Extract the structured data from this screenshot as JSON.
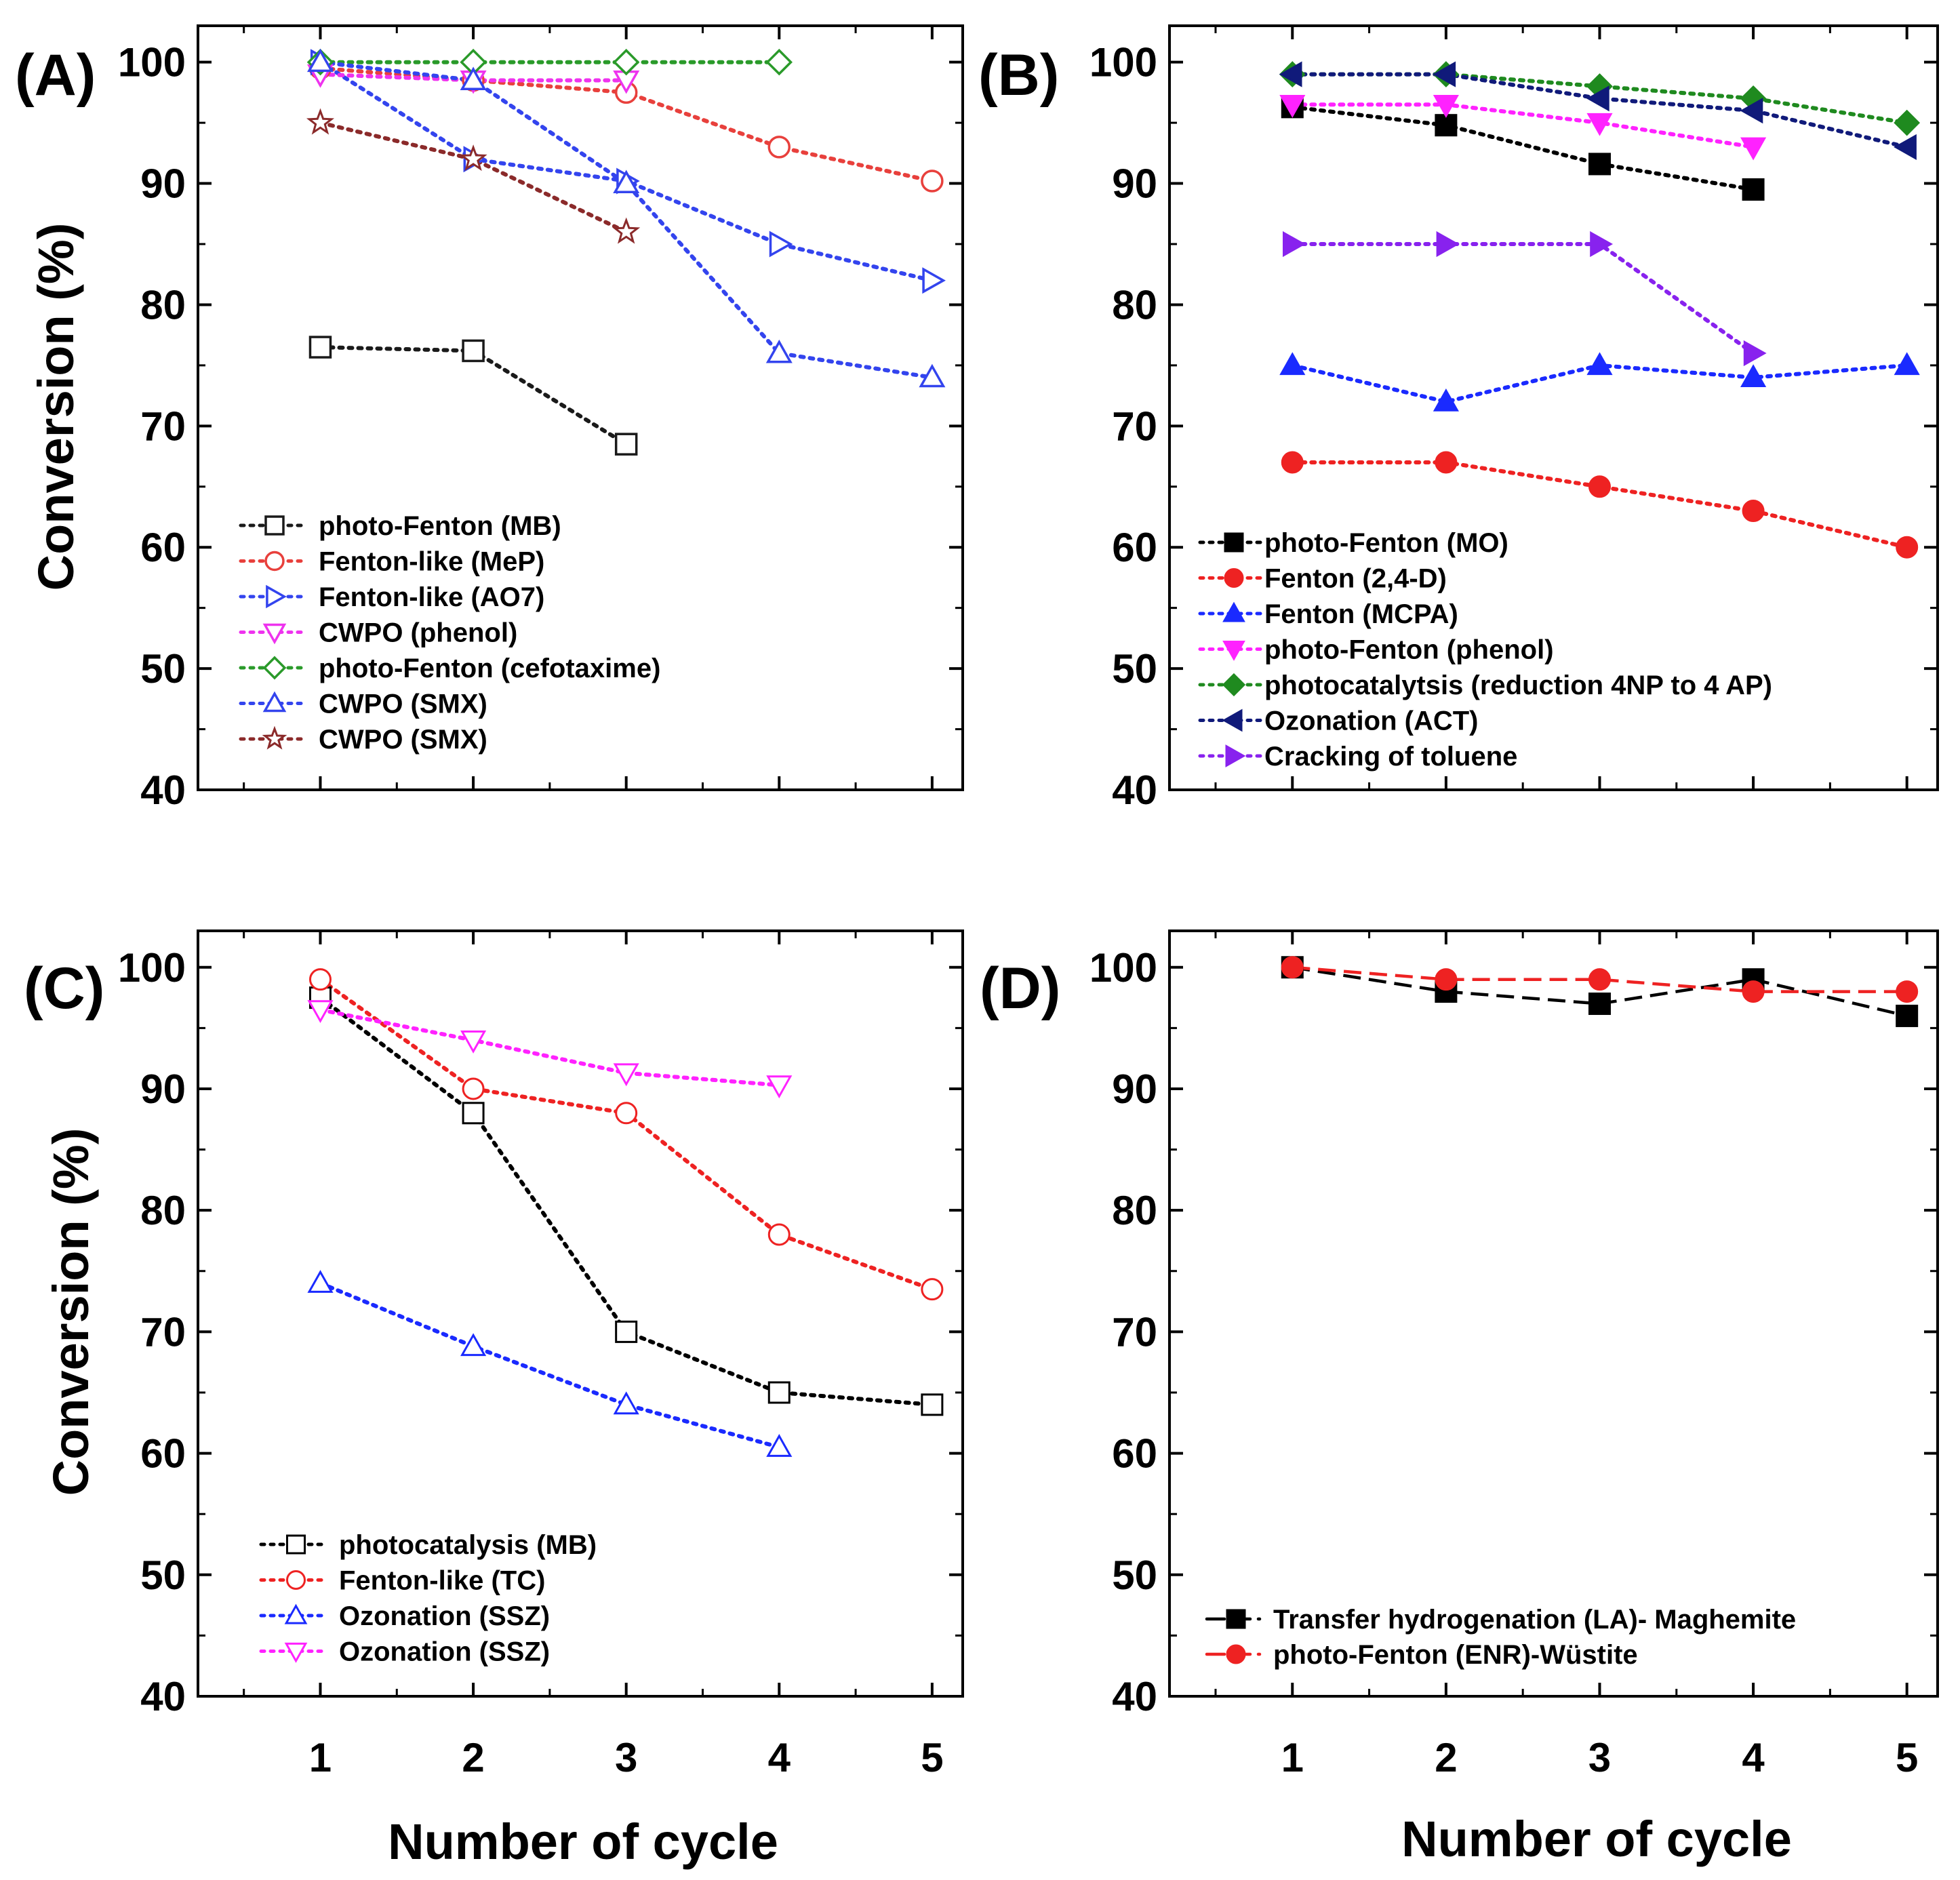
{
  "figure": {
    "shared_xlabel_left": "Number of cycle",
    "shared_xlabel_right": "Number of cycle",
    "ylabel": "Conversion (%)"
  },
  "chart_data": [
    {
      "panel": "(A)",
      "type": "line",
      "xlim": [
        0.2,
        5.2
      ],
      "ylim": [
        40,
        103
      ],
      "xticks": [
        1,
        2,
        3,
        4,
        5
      ],
      "yticks": [
        40,
        50,
        60,
        70,
        80,
        90,
        100
      ],
      "xlabel": "",
      "ylabel": "Conversion (%)",
      "legend_position": "lower-left",
      "series": [
        {
          "name": "photo-Fenton (MB)",
          "color": "#1a1a1a",
          "marker": "square",
          "fill": "open",
          "dash": "dotted",
          "x": [
            1,
            2,
            3
          ],
          "values": [
            76.5,
            76.2,
            68.5
          ]
        },
        {
          "name": "Fenton-like (MeP)",
          "color": "#e8403c",
          "marker": "circle",
          "fill": "open",
          "dash": "dotted",
          "x": [
            1,
            2,
            3,
            4,
            5
          ],
          "values": [
            99.5,
            98.5,
            97.5,
            93,
            90.2
          ]
        },
        {
          "name": "Fenton-like (AO7)",
          "color": "#3344ee",
          "marker": "triangle-right",
          "fill": "open",
          "dash": "dotted",
          "x": [
            1,
            2,
            3,
            4,
            5
          ],
          "values": [
            100,
            92,
            90.2,
            85,
            82
          ]
        },
        {
          "name": "CWPO (phenol)",
          "color": "#ee33ee",
          "marker": "triangle-down",
          "fill": "open",
          "dash": "dotted",
          "x": [
            1,
            2,
            3
          ],
          "values": [
            99,
            98.5,
            98.5
          ]
        },
        {
          "name": "photo-Fenton (cefotaxime)",
          "color": "#2a9a2a",
          "marker": "diamond",
          "fill": "open",
          "dash": "dotted",
          "x": [
            1,
            2,
            3,
            4
          ],
          "values": [
            100,
            100,
            100,
            100
          ]
        },
        {
          "name": "CWPO (SMX)",
          "color": "#3344ee",
          "marker": "triangle-up",
          "fill": "open",
          "dash": "dotted",
          "x": [
            1,
            2,
            3,
            4,
            5
          ],
          "values": [
            100,
            98.5,
            90,
            76,
            74
          ]
        },
        {
          "name": "CWPO (SMX)",
          "color": "#8b2a2a",
          "marker": "star",
          "fill": "open",
          "dash": "dotted",
          "x": [
            1,
            2,
            3
          ],
          "values": [
            95,
            92,
            86
          ]
        }
      ]
    },
    {
      "panel": "(B)",
      "type": "line",
      "xlim": [
        0.2,
        5.2
      ],
      "ylim": [
        40,
        103
      ],
      "xticks": [
        1,
        2,
        3,
        4,
        5
      ],
      "yticks": [
        40,
        50,
        60,
        70,
        80,
        90,
        100
      ],
      "xlabel": "",
      "ylabel": "",
      "legend_position": "lower-left",
      "series": [
        {
          "name": "photo-Fenton (MO)",
          "color": "#000000",
          "marker": "square",
          "fill": "solid",
          "dash": "dotted",
          "x": [
            1,
            2,
            3,
            4
          ],
          "values": [
            96.3,
            94.8,
            91.6,
            89.5
          ]
        },
        {
          "name": "Fenton (2,4-D)",
          "color": "#ee2222",
          "marker": "circle",
          "fill": "solid",
          "dash": "dotted",
          "x": [
            1,
            2,
            3,
            4,
            5
          ],
          "values": [
            67,
            67,
            65,
            63,
            60
          ]
        },
        {
          "name": "Fenton (MCPA)",
          "color": "#1a2aff",
          "marker": "triangle-up",
          "fill": "solid",
          "dash": "dotted",
          "x": [
            1,
            2,
            3,
            4,
            5
          ],
          "values": [
            75,
            72,
            75,
            74,
            75
          ]
        },
        {
          "name": "photo-Fenton (phenol)",
          "color": "#ff22ff",
          "marker": "triangle-down",
          "fill": "solid",
          "dash": "dotted",
          "x": [
            1,
            2,
            3,
            4
          ],
          "values": [
            96.5,
            96.5,
            95,
            93
          ]
        },
        {
          "name": "photocatalytsis (reduction 4NP to 4 AP)",
          "color": "#1f8a1f",
          "marker": "diamond",
          "fill": "solid",
          "dash": "dotted",
          "x": [
            1,
            2,
            3,
            4,
            5
          ],
          "values": [
            99,
            99,
            98,
            97,
            95
          ]
        },
        {
          "name": "Ozonation (ACT)",
          "color": "#101a7a",
          "marker": "triangle-left",
          "fill": "solid",
          "dash": "dotted",
          "x": [
            1,
            2,
            3,
            4,
            5
          ],
          "values": [
            99,
            99,
            97,
            96,
            93
          ]
        },
        {
          "name": "Cracking of toluene",
          "color": "#8822ee",
          "marker": "triangle-right",
          "fill": "solid",
          "dash": "dotted",
          "x": [
            1,
            2,
            3,
            4
          ],
          "values": [
            85,
            85,
            85,
            76
          ]
        }
      ]
    },
    {
      "panel": "(C)",
      "type": "line",
      "xlim": [
        0.2,
        5.2
      ],
      "ylim": [
        40,
        103
      ],
      "xticks": [
        1,
        2,
        3,
        4,
        5
      ],
      "yticks": [
        40,
        50,
        60,
        70,
        80,
        90,
        100
      ],
      "xlabel": "Number of cycle",
      "ylabel": "Conversion (%)",
      "legend_position": "lower-left",
      "series": [
        {
          "name": "photocatalysis (MB)",
          "color": "#000000",
          "marker": "square",
          "fill": "half",
          "dash": "dotted",
          "x": [
            1,
            2,
            3,
            4,
            5
          ],
          "values": [
            97.5,
            88,
            70,
            65,
            64
          ]
        },
        {
          "name": "Fenton-like (TC)",
          "color": "#ee2222",
          "marker": "circle",
          "fill": "half",
          "dash": "dotted",
          "x": [
            1,
            2,
            3,
            4,
            5
          ],
          "values": [
            99,
            90,
            88,
            78,
            73.5
          ]
        },
        {
          "name": "Ozonation (SSZ)",
          "color": "#1a2aff",
          "marker": "triangle-up",
          "fill": "half",
          "dash": "dotted",
          "x": [
            1,
            2,
            3,
            4
          ],
          "values": [
            74,
            68.8,
            64,
            60.5
          ]
        },
        {
          "name": "Ozonation (SSZ)",
          "color": "#ff22ff",
          "marker": "triangle-down",
          "fill": "half",
          "dash": "dotted",
          "x": [
            1,
            2,
            3,
            4
          ],
          "values": [
            96.5,
            94,
            91.3,
            90.3
          ]
        }
      ]
    },
    {
      "panel": "(D)",
      "type": "line",
      "xlim": [
        0.2,
        5.2
      ],
      "ylim": [
        40,
        103
      ],
      "xticks": [
        1,
        2,
        3,
        4,
        5
      ],
      "yticks": [
        40,
        50,
        60,
        70,
        80,
        90,
        100
      ],
      "xlabel": "Number of cycle",
      "ylabel": "",
      "legend_position": "lower-left",
      "series": [
        {
          "name": "Transfer hydrogenation (LA)- Maghemite",
          "color": "#000000",
          "marker": "square",
          "fill": "solid",
          "dash": "dashed",
          "x": [
            1,
            2,
            3,
            4,
            5
          ],
          "values": [
            100,
            98,
            97,
            99,
            96
          ]
        },
        {
          "name": "photo-Fenton (ENR)-Wüstite",
          "color": "#ee2222",
          "marker": "circle",
          "fill": "solid",
          "dash": "dashed",
          "x": [
            1,
            2,
            3,
            4,
            5
          ],
          "values": [
            100,
            99,
            99,
            98,
            98
          ]
        }
      ]
    }
  ]
}
